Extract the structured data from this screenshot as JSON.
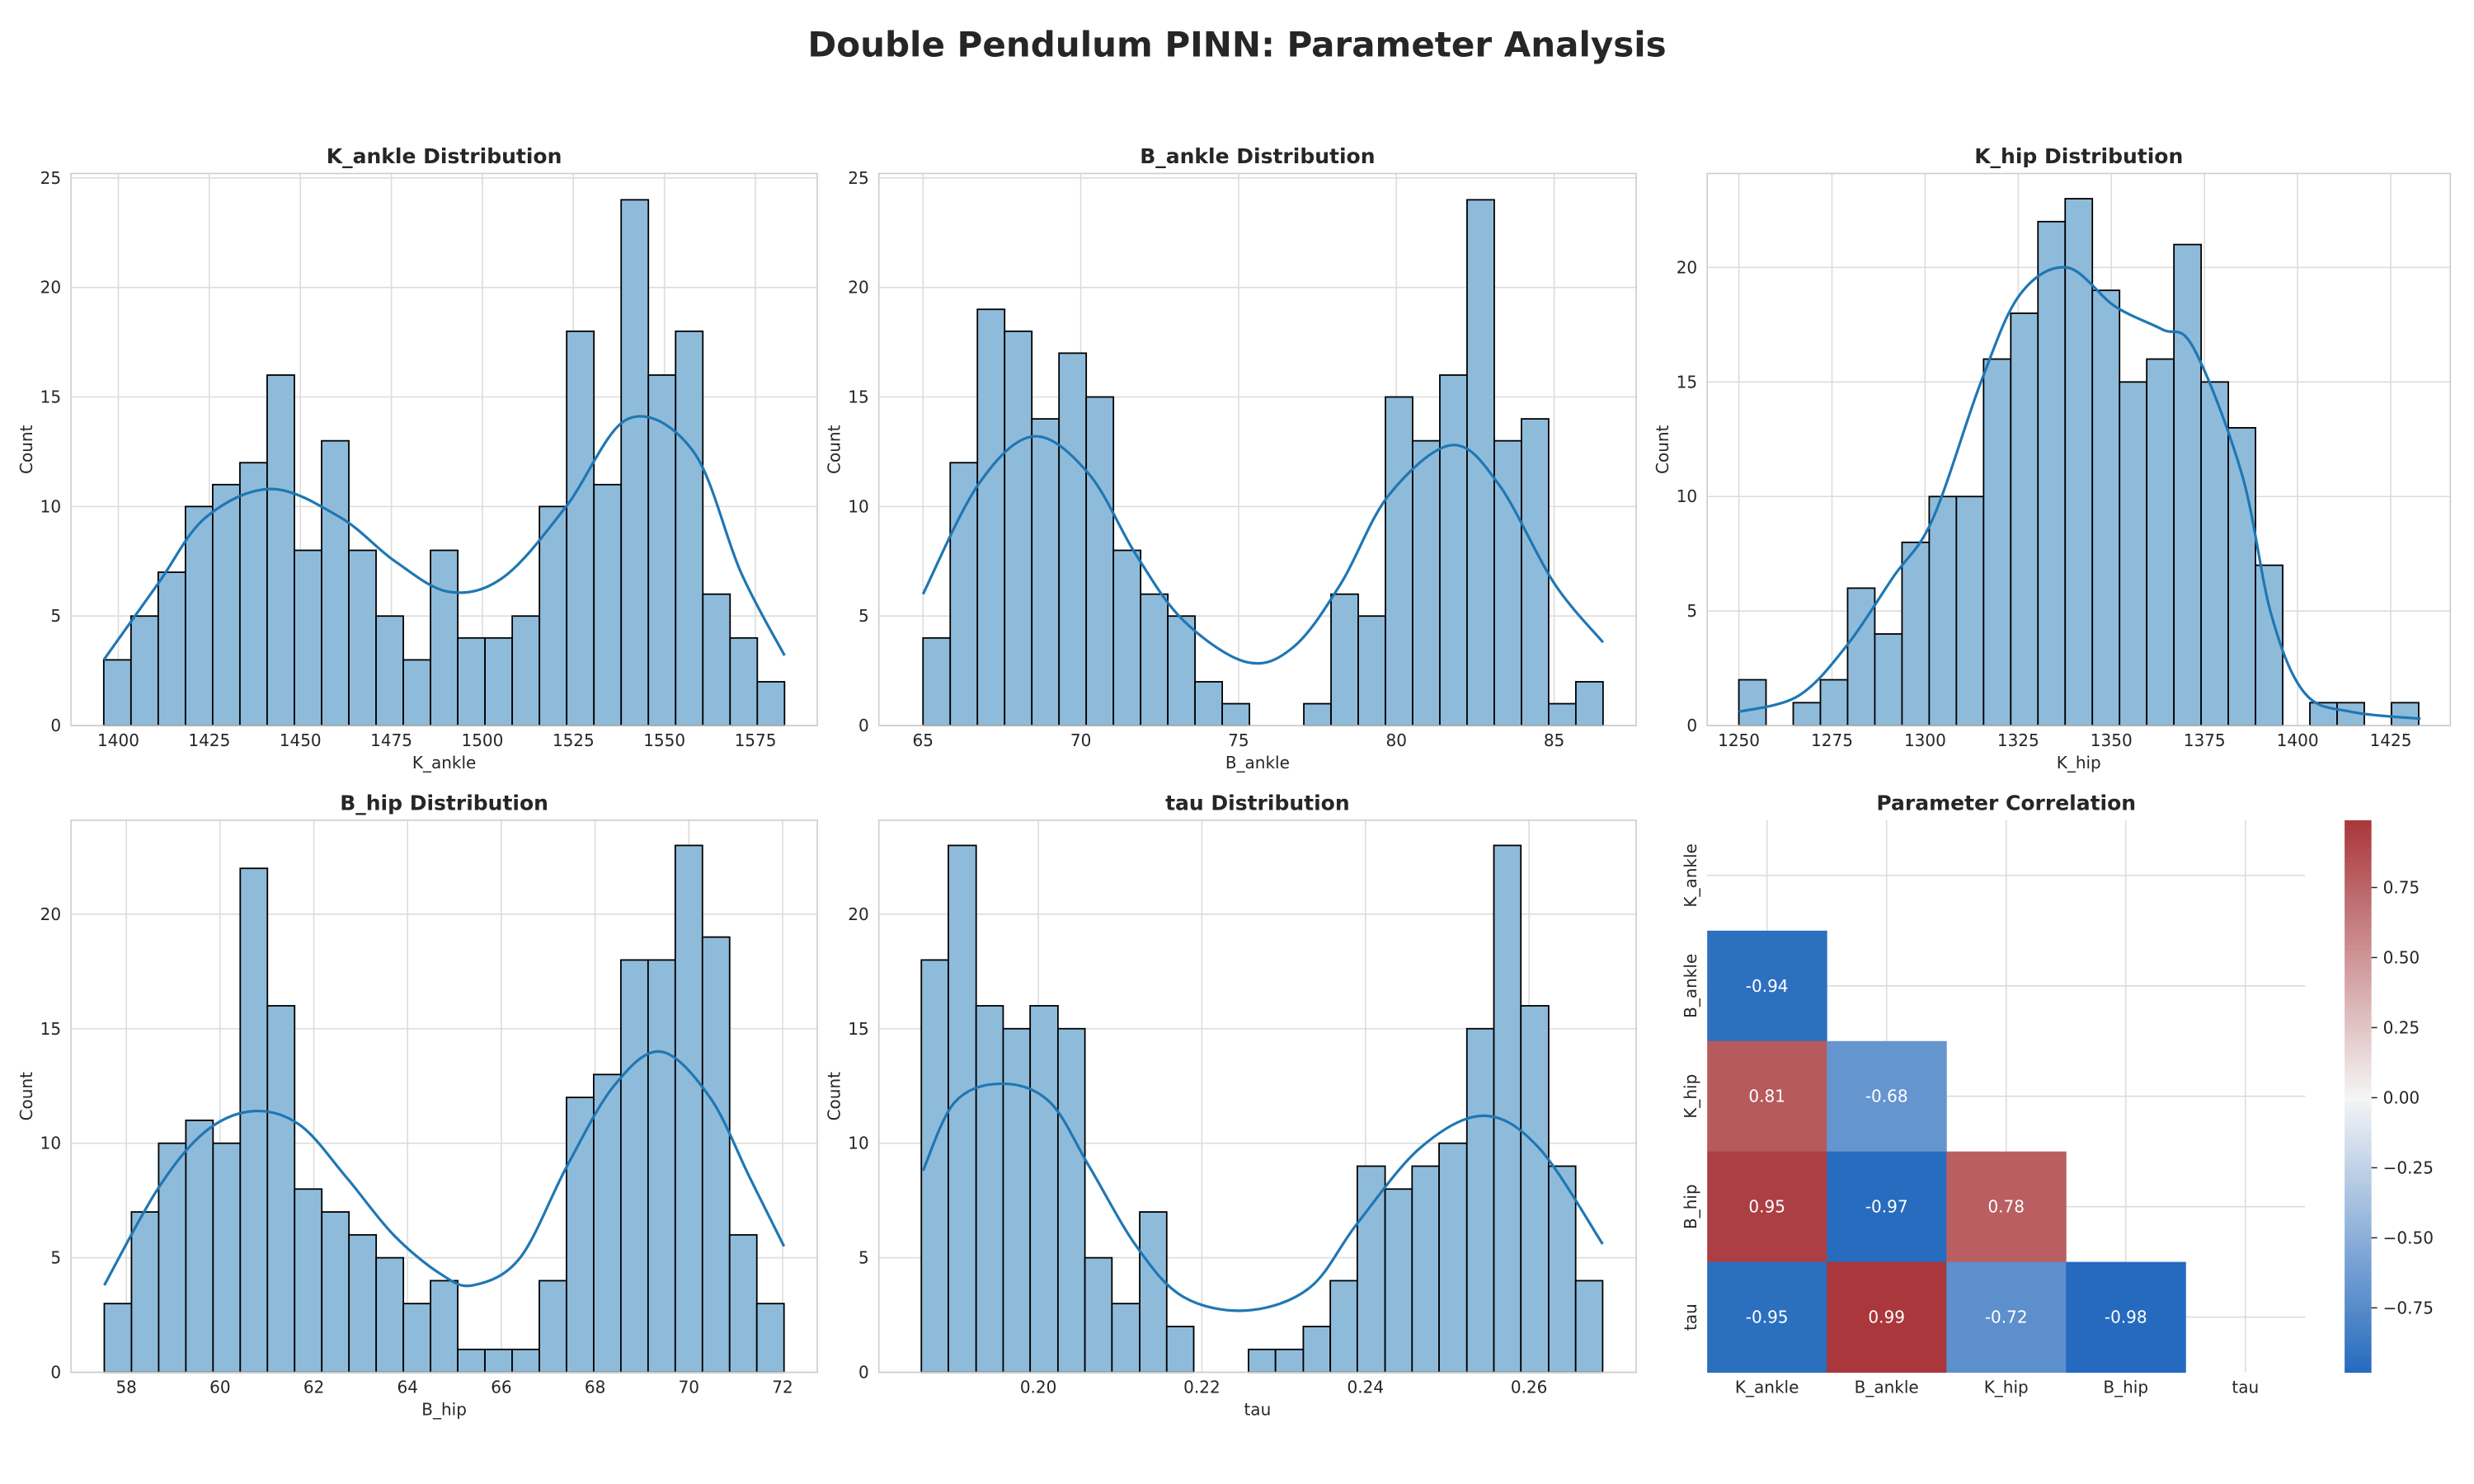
{
  "title": "Double Pendulum PINN: Parameter Analysis",
  "chart_data": [
    {
      "type": "histogram",
      "title": "K_ankle Distribution",
      "xlabel": "K_ankle",
      "ylabel": "Count",
      "color": "#1f77b4",
      "bar_alpha": 0.5,
      "edgecolor": "#000000",
      "grid": true,
      "bins": [
        1396,
        1403.48,
        1410.96,
        1418.44,
        1425.92,
        1433.4,
        1440.88,
        1448.36,
        1455.84,
        1463.32,
        1470.8,
        1478.28,
        1485.76,
        1493.24,
        1500.72,
        1508.2,
        1515.68,
        1523.16,
        1530.64,
        1538.12,
        1545.6,
        1553.08,
        1560.56,
        1568.04,
        1575.52,
        1583
      ],
      "values": [
        3,
        5,
        7,
        10,
        11,
        12,
        16,
        8,
        13,
        8,
        5,
        3,
        8,
        4,
        4,
        5,
        10,
        18,
        11,
        24,
        16,
        18,
        6,
        4,
        2
      ],
      "kde_x": [
        1396,
        1411,
        1424,
        1442,
        1461,
        1476,
        1491,
        1506,
        1523,
        1540,
        1558,
        1571,
        1583
      ],
      "kde_y": [
        3,
        6.5,
        9.5,
        10.8,
        9.5,
        7.5,
        6.1,
        6.8,
        10,
        14,
        12.5,
        7,
        3.2
      ],
      "xlim": [
        1387,
        1592
      ],
      "ylim": [
        0,
        25.2
      ],
      "xticks": [
        1400,
        1425,
        1450,
        1475,
        1500,
        1525,
        1550,
        1575
      ],
      "yticks": [
        0,
        5,
        10,
        15,
        20,
        25
      ]
    },
    {
      "type": "histogram",
      "title": "B_ankle Distribution",
      "xlabel": "B_ankle",
      "ylabel": "Count",
      "color": "#1f77b4",
      "bar_alpha": 0.5,
      "edgecolor": "#000000",
      "grid": true,
      "bins": [
        65,
        65.862,
        66.724,
        67.586,
        68.448,
        69.31,
        70.172,
        71.034,
        71.896,
        72.758,
        73.62,
        74.482,
        75.344,
        76.206,
        77.068,
        77.93,
        78.792,
        79.654,
        80.516,
        81.378,
        82.24,
        83.102,
        83.964,
        84.826,
        85.688,
        86.55
      ],
      "values": [
        4,
        12,
        19,
        18,
        14,
        17,
        15,
        8,
        6,
        5,
        2,
        1,
        0,
        0,
        1,
        6,
        5,
        15,
        13,
        16,
        24,
        13,
        14,
        1,
        2
      ],
      "kde_x": [
        65,
        66.75,
        68.5,
        70.25,
        71.75,
        73.25,
        75.25,
        76.75,
        78.25,
        79.75,
        81.75,
        83.25,
        85,
        86.55
      ],
      "kde_y": [
        6,
        11,
        13.2,
        11.5,
        7.8,
        4.8,
        2.9,
        3.6,
        6.5,
        10.5,
        12.8,
        11,
        6.5,
        3.8
      ],
      "xlim": [
        63.6,
        87.6
      ],
      "ylim": [
        0,
        25.2
      ],
      "xticks": [
        65,
        70,
        75,
        80,
        85
      ],
      "yticks": [
        0,
        5,
        10,
        15,
        20,
        25
      ]
    },
    {
      "type": "histogram",
      "title": "K_hip Distribution",
      "xlabel": "K_hip",
      "ylabel": "Count",
      "color": "#1f77b4",
      "bar_alpha": 0.5,
      "edgecolor": "#000000",
      "grid": true,
      "bins": [
        1250,
        1257.3,
        1264.6,
        1271.9,
        1279.2,
        1286.5,
        1293.8,
        1301.1,
        1308.4,
        1315.7,
        1323,
        1330.3,
        1337.6,
        1344.9,
        1352.2,
        1359.5,
        1366.8,
        1374.1,
        1381.4,
        1388.7,
        1396,
        1403.3,
        1410.6,
        1417.9,
        1425.2,
        1432.5
      ],
      "values": [
        2,
        0,
        1,
        2,
        6,
        4,
        8,
        10,
        10,
        16,
        18,
        22,
        23,
        19,
        15,
        16,
        21,
        15,
        13,
        7,
        0,
        1,
        1,
        0,
        1
      ],
      "kde_x": [
        1250,
        1266,
        1279,
        1291.5,
        1302,
        1315,
        1325.4,
        1338,
        1351,
        1363.6,
        1372,
        1385,
        1393,
        1402,
        1414.5,
        1433
      ],
      "kde_y": [
        0.6,
        1.3,
        3.5,
        6.5,
        9,
        15,
        18.8,
        20,
        18.3,
        17.3,
        16.5,
        11,
        4.8,
        1.4,
        0.6,
        0.3
      ],
      "xlim": [
        1241.5,
        1441
      ],
      "ylim": [
        0,
        24.1
      ],
      "xticks": [
        1250,
        1275,
        1300,
        1325,
        1350,
        1375,
        1400,
        1425
      ],
      "yticks": [
        0,
        5,
        10,
        15,
        20
      ]
    },
    {
      "type": "histogram",
      "title": "B_hip Distribution",
      "xlabel": "B_hip",
      "ylabel": "Count",
      "color": "#1f77b4",
      "bar_alpha": 0.5,
      "edgecolor": "#000000",
      "grid": true,
      "bins": [
        57.53,
        58.11,
        58.69,
        59.27,
        59.85,
        60.43,
        61.01,
        61.59,
        62.17,
        62.75,
        63.33,
        63.91,
        64.49,
        65.07,
        65.65,
        66.23,
        66.81,
        67.39,
        67.97,
        68.55,
        69.13,
        69.71,
        70.29,
        70.87,
        71.45,
        72.03
      ],
      "values": [
        3,
        7,
        10,
        11,
        10,
        22,
        16,
        8,
        7,
        6,
        5,
        3,
        4,
        1,
        1,
        1,
        4,
        12,
        13,
        18,
        18,
        23,
        19,
        6,
        3
      ],
      "kde_x": [
        57.53,
        58.67,
        59.68,
        60.7,
        61.7,
        62.7,
        63.7,
        64.7,
        65.4,
        66.4,
        67.4,
        68.4,
        69.4,
        70.45,
        71.3,
        72.03
      ],
      "kde_y": [
        3.8,
        8,
        10.5,
        11.4,
        10.8,
        8.5,
        6,
        4.3,
        3.8,
        5,
        9,
        12.5,
        14,
        12,
        8.5,
        5.5
      ],
      "xlim": [
        56.82,
        72.74
      ],
      "ylim": [
        0,
        24.1
      ],
      "xticks": [
        58,
        60,
        62,
        64,
        66,
        68,
        70,
        72
      ],
      "yticks": [
        0,
        5,
        10,
        15,
        20
      ]
    },
    {
      "type": "histogram",
      "title": "tau Distribution",
      "xlabel": "tau",
      "ylabel": "Count",
      "color": "#1f77b4",
      "bar_alpha": 0.5,
      "edgecolor": "#000000",
      "grid": true,
      "bins": [
        0.1857,
        0.189,
        0.1924,
        0.1957,
        0.199,
        0.2024,
        0.2057,
        0.209,
        0.2124,
        0.2157,
        0.219,
        0.2224,
        0.2257,
        0.229,
        0.2324,
        0.2357,
        0.239,
        0.2424,
        0.2457,
        0.249,
        0.2524,
        0.2557,
        0.259,
        0.2624,
        0.2657,
        0.269
      ],
      "values": [
        18,
        23,
        16,
        15,
        16,
        15,
        5,
        3,
        7,
        2,
        0,
        0,
        1,
        1,
        2,
        4,
        9,
        8,
        9,
        10,
        15,
        23,
        16,
        9,
        4
      ],
      "kde_x": [
        0.1859,
        0.1898,
        0.1956,
        0.2014,
        0.2062,
        0.212,
        0.2177,
        0.2255,
        0.2332,
        0.239,
        0.2467,
        0.2544,
        0.2612,
        0.269
      ],
      "kde_y": [
        8.8,
        11.8,
        12.6,
        11.8,
        9,
        5.5,
        3.3,
        2.7,
        3.7,
        6.5,
        9.8,
        11.2,
        9.8,
        5.6
      ],
      "xlim": [
        0.1805,
        0.2731
      ],
      "ylim": [
        0,
        24.1
      ],
      "xticks": [
        {
          "value": 0.2,
          "label": "0.20"
        },
        0.22,
        0.24,
        0.26
      ],
      "yticks": [
        0,
        5,
        10,
        15,
        20
      ]
    },
    {
      "type": "heatmap",
      "title": "Parameter Correlation",
      "x_categories": [
        "K_ankle",
        "B_ankle",
        "K_hip",
        "B_hip",
        "tau"
      ],
      "y_categories": [
        "K_ankle",
        "B_ankle",
        "K_hip",
        "B_hip",
        "tau"
      ],
      "values": [
        [
          null,
          null,
          null,
          null,
          null
        ],
        [
          -0.94,
          null,
          null,
          null,
          null
        ],
        [
          0.81,
          -0.68,
          null,
          null,
          null
        ],
        [
          0.95,
          -0.97,
          0.78,
          null,
          null
        ],
        [
          -0.95,
          0.99,
          -0.72,
          -0.98,
          null
        ]
      ],
      "colormap": [
        "#2369bd",
        "#f5f5f5",
        "#a9373b"
      ],
      "clim": [
        -0.98,
        0.99
      ],
      "cticks": [
        {
          "value": -0.75,
          "label": "−0.75"
        },
        {
          "value": -0.5,
          "label": "−0.50"
        },
        {
          "value": -0.25,
          "label": "−0.25"
        },
        {
          "value": 0,
          "label": "0.00"
        },
        0.25,
        {
          "value": 0.5,
          "label": "0.50"
        },
        0.75
      ]
    }
  ]
}
